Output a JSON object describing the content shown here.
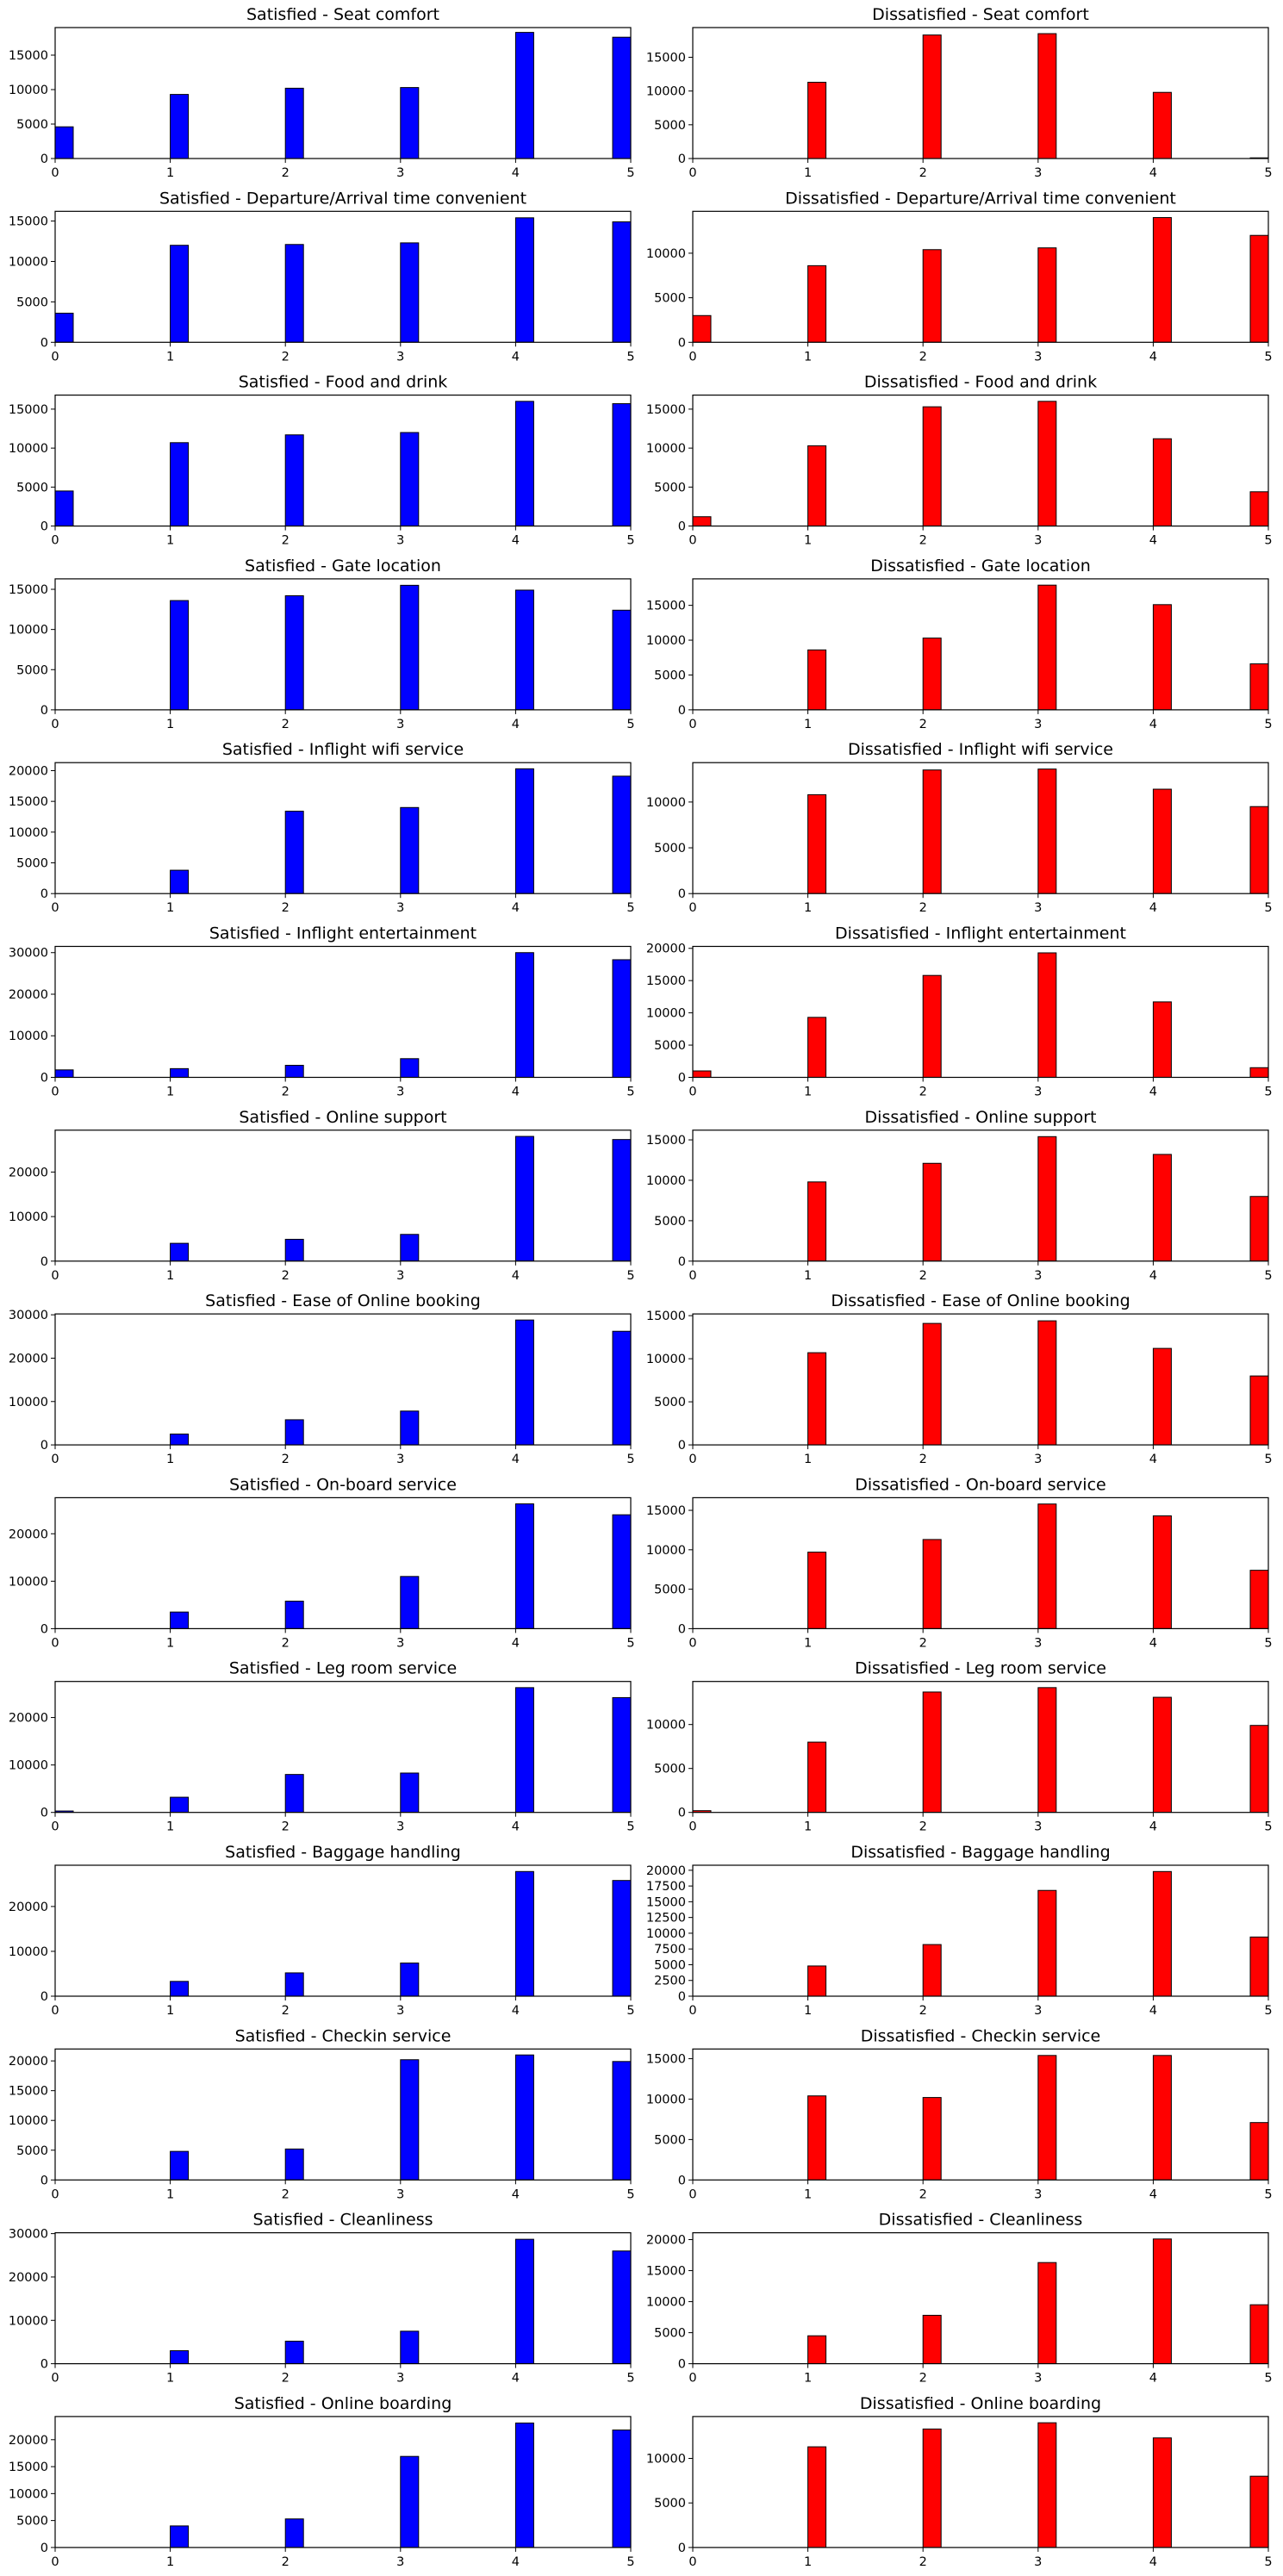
{
  "chart_data": [
    {
      "type": "bar",
      "title": "Satisfied - Seat comfort",
      "color": "#0000ff",
      "x": [
        0,
        1,
        2,
        3,
        4,
        5
      ],
      "values": [
        4600,
        9300,
        10200,
        10300,
        18300,
        17600
      ],
      "xlim": [
        0,
        5
      ],
      "ylim": [
        0,
        19000
      ],
      "yticks": [
        0,
        5000,
        10000,
        15000
      ],
      "xticks": [
        0,
        1,
        2,
        3,
        4,
        5
      ]
    },
    {
      "type": "bar",
      "title": "Dissatisfied - Seat comfort",
      "color": "#ff0000",
      "x": [
        0,
        1,
        2,
        3,
        4,
        5
      ],
      "values": [
        0,
        11300,
        18300,
        18500,
        9800,
        100
      ],
      "xlim": [
        0,
        5
      ],
      "ylim": [
        0,
        19400
      ],
      "yticks": [
        0,
        5000,
        10000,
        15000
      ],
      "xticks": [
        0,
        1,
        2,
        3,
        4,
        5
      ]
    },
    {
      "type": "bar",
      "title": "Satisfied - Departure/Arrival time convenient",
      "color": "#0000ff",
      "x": [
        0,
        1,
        2,
        3,
        4,
        5
      ],
      "values": [
        3600,
        12000,
        12100,
        12300,
        15400,
        14900
      ],
      "xlim": [
        0,
        5
      ],
      "ylim": [
        0,
        16200
      ],
      "yticks": [
        0,
        5000,
        10000,
        15000
      ],
      "xticks": [
        0,
        1,
        2,
        3,
        4,
        5
      ]
    },
    {
      "type": "bar",
      "title": "Dissatisfied - Departure/Arrival time convenient",
      "color": "#ff0000",
      "x": [
        0,
        1,
        2,
        3,
        4,
        5
      ],
      "values": [
        3000,
        8600,
        10400,
        10600,
        14000,
        12000
      ],
      "xlim": [
        0,
        5
      ],
      "ylim": [
        0,
        14700
      ],
      "yticks": [
        0,
        5000,
        10000
      ],
      "xticks": [
        0,
        1,
        2,
        3,
        4,
        5
      ]
    },
    {
      "type": "bar",
      "title": "Satisfied - Food and drink",
      "color": "#0000ff",
      "x": [
        0,
        1,
        2,
        3,
        4,
        5
      ],
      "values": [
        4500,
        10700,
        11700,
        12000,
        16000,
        15700
      ],
      "xlim": [
        0,
        5
      ],
      "ylim": [
        0,
        16800
      ],
      "yticks": [
        0,
        5000,
        10000,
        15000
      ],
      "xticks": [
        0,
        1,
        2,
        3,
        4,
        5
      ]
    },
    {
      "type": "bar",
      "title": "Dissatisfied - Food and drink",
      "color": "#ff0000",
      "x": [
        0,
        1,
        2,
        3,
        4,
        5
      ],
      "values": [
        1200,
        10300,
        15300,
        16000,
        11200,
        4400
      ],
      "xlim": [
        0,
        5
      ],
      "ylim": [
        0,
        16800
      ],
      "yticks": [
        0,
        5000,
        10000,
        15000
      ],
      "xticks": [
        0,
        1,
        2,
        3,
        4,
        5
      ]
    },
    {
      "type": "bar",
      "title": "Satisfied - Gate location",
      "color": "#0000ff",
      "x": [
        0,
        1,
        2,
        3,
        4,
        5
      ],
      "values": [
        0,
        13600,
        14200,
        15500,
        14900,
        12400
      ],
      "xlim": [
        0,
        5
      ],
      "ylim": [
        0,
        16300
      ],
      "yticks": [
        0,
        5000,
        10000,
        15000
      ],
      "xticks": [
        0,
        1,
        2,
        3,
        4,
        5
      ]
    },
    {
      "type": "bar",
      "title": "Dissatisfied - Gate location",
      "color": "#ff0000",
      "x": [
        0,
        1,
        2,
        3,
        4,
        5
      ],
      "values": [
        0,
        8600,
        10300,
        17900,
        15100,
        6600
      ],
      "xlim": [
        0,
        5
      ],
      "ylim": [
        0,
        18800
      ],
      "yticks": [
        0,
        5000,
        10000,
        15000
      ],
      "xticks": [
        0,
        1,
        2,
        3,
        4,
        5
      ]
    },
    {
      "type": "bar",
      "title": "Satisfied - Inflight wifi service",
      "color": "#0000ff",
      "x": [
        0,
        1,
        2,
        3,
        4,
        5
      ],
      "values": [
        0,
        3800,
        13400,
        14000,
        20300,
        19100
      ],
      "xlim": [
        0,
        5
      ],
      "ylim": [
        0,
        21300
      ],
      "yticks": [
        0,
        5000,
        10000,
        15000,
        20000
      ],
      "xticks": [
        0,
        1,
        2,
        3,
        4,
        5
      ]
    },
    {
      "type": "bar",
      "title": "Dissatisfied - Inflight wifi service",
      "color": "#ff0000",
      "x": [
        0,
        1,
        2,
        3,
        4,
        5
      ],
      "values": [
        0,
        10800,
        13500,
        13600,
        11400,
        9500
      ],
      "xlim": [
        0,
        5
      ],
      "ylim": [
        0,
        14300
      ],
      "yticks": [
        0,
        5000,
        10000
      ],
      "xticks": [
        0,
        1,
        2,
        3,
        4,
        5
      ]
    },
    {
      "type": "bar",
      "title": "Satisfied - Inflight entertainment",
      "color": "#0000ff",
      "x": [
        0,
        1,
        2,
        3,
        4,
        5
      ],
      "values": [
        1800,
        2100,
        2900,
        4500,
        30000,
        28300
      ],
      "xlim": [
        0,
        5
      ],
      "ylim": [
        0,
        31500
      ],
      "yticks": [
        0,
        10000,
        20000,
        30000
      ],
      "xticks": [
        0,
        1,
        2,
        3,
        4,
        5
      ]
    },
    {
      "type": "bar",
      "title": "Dissatisfied - Inflight entertainment",
      "color": "#ff0000",
      "x": [
        0,
        1,
        2,
        3,
        4,
        5
      ],
      "values": [
        1000,
        9300,
        15800,
        19300,
        11700,
        1500
      ],
      "xlim": [
        0,
        5
      ],
      "ylim": [
        0,
        20300
      ],
      "yticks": [
        0,
        5000,
        10000,
        15000,
        20000
      ],
      "xticks": [
        0,
        1,
        2,
        3,
        4,
        5
      ]
    },
    {
      "type": "bar",
      "title": "Satisfied - Online support",
      "color": "#0000ff",
      "x": [
        0,
        1,
        2,
        3,
        4,
        5
      ],
      "values": [
        0,
        4000,
        4900,
        6000,
        28000,
        27300
      ],
      "xlim": [
        0,
        5
      ],
      "ylim": [
        0,
        29400
      ],
      "yticks": [
        0,
        10000,
        20000
      ],
      "xticks": [
        0,
        1,
        2,
        3,
        4,
        5
      ]
    },
    {
      "type": "bar",
      "title": "Dissatisfied - Online support",
      "color": "#ff0000",
      "x": [
        0,
        1,
        2,
        3,
        4,
        5
      ],
      "values": [
        0,
        9800,
        12100,
        15400,
        13200,
        8000
      ],
      "xlim": [
        0,
        5
      ],
      "ylim": [
        0,
        16200
      ],
      "yticks": [
        0,
        5000,
        10000,
        15000
      ],
      "xticks": [
        0,
        1,
        2,
        3,
        4,
        5
      ]
    },
    {
      "type": "bar",
      "title": "Satisfied - Ease of Online booking",
      "color": "#0000ff",
      "x": [
        0,
        1,
        2,
        3,
        4,
        5
      ],
      "values": [
        0,
        2500,
        5800,
        7800,
        28800,
        26200
      ],
      "xlim": [
        0,
        5
      ],
      "ylim": [
        0,
        30200
      ],
      "yticks": [
        0,
        10000,
        20000,
        30000
      ],
      "xticks": [
        0,
        1,
        2,
        3,
        4,
        5
      ]
    },
    {
      "type": "bar",
      "title": "Dissatisfied - Ease of Online booking",
      "color": "#ff0000",
      "x": [
        0,
        1,
        2,
        3,
        4,
        5
      ],
      "values": [
        0,
        10700,
        14100,
        14400,
        11200,
        8000
      ],
      "xlim": [
        0,
        5
      ],
      "ylim": [
        0,
        15200
      ],
      "yticks": [
        0,
        5000,
        10000,
        15000
      ],
      "xticks": [
        0,
        1,
        2,
        3,
        4,
        5
      ]
    },
    {
      "type": "bar",
      "title": "Satisfied - On-board service",
      "color": "#0000ff",
      "x": [
        0,
        1,
        2,
        3,
        4,
        5
      ],
      "values": [
        0,
        3500,
        5800,
        11000,
        26300,
        24000
      ],
      "xlim": [
        0,
        5
      ],
      "ylim": [
        0,
        27600
      ],
      "yticks": [
        0,
        10000,
        20000
      ],
      "xticks": [
        0,
        1,
        2,
        3,
        4,
        5
      ]
    },
    {
      "type": "bar",
      "title": "Dissatisfied - On-board service",
      "color": "#ff0000",
      "x": [
        0,
        1,
        2,
        3,
        4,
        5
      ],
      "values": [
        0,
        9700,
        11300,
        15800,
        14300,
        7400
      ],
      "xlim": [
        0,
        5
      ],
      "ylim": [
        0,
        16600
      ],
      "yticks": [
        0,
        5000,
        10000,
        15000
      ],
      "xticks": [
        0,
        1,
        2,
        3,
        4,
        5
      ]
    },
    {
      "type": "bar",
      "title": "Satisfied - Leg room service",
      "color": "#0000ff",
      "x": [
        0,
        1,
        2,
        3,
        4,
        5
      ],
      "values": [
        300,
        3200,
        8000,
        8300,
        26300,
        24200
      ],
      "xlim": [
        0,
        5
      ],
      "ylim": [
        0,
        27600
      ],
      "yticks": [
        0,
        10000,
        20000
      ],
      "xticks": [
        0,
        1,
        2,
        3,
        4,
        5
      ]
    },
    {
      "type": "bar",
      "title": "Dissatisfied - Leg room service",
      "color": "#ff0000",
      "x": [
        0,
        1,
        2,
        3,
        4,
        5
      ],
      "values": [
        200,
        8000,
        13700,
        14200,
        13100,
        9900
      ],
      "xlim": [
        0,
        5
      ],
      "ylim": [
        0,
        14900
      ],
      "yticks": [
        0,
        5000,
        10000
      ],
      "xticks": [
        0,
        1,
        2,
        3,
        4,
        5
      ]
    },
    {
      "type": "bar",
      "title": "Satisfied - Baggage handling",
      "color": "#0000ff",
      "x": [
        0,
        1,
        2,
        3,
        4,
        5
      ],
      "values": [
        0,
        3300,
        5200,
        7400,
        27800,
        25800
      ],
      "xlim": [
        0,
        5
      ],
      "ylim": [
        0,
        29200
      ],
      "yticks": [
        0,
        10000,
        20000
      ],
      "xticks": [
        0,
        1,
        2,
        3,
        4,
        5
      ]
    },
    {
      "type": "bar",
      "title": "Dissatisfied - Baggage handling",
      "color": "#ff0000",
      "x": [
        0,
        1,
        2,
        3,
        4,
        5
      ],
      "values": [
        0,
        4800,
        8200,
        16800,
        19800,
        9400
      ],
      "xlim": [
        0,
        5
      ],
      "ylim": [
        0,
        20800
      ],
      "yticks": [
        0,
        2500,
        5000,
        7500,
        10000,
        12500,
        15000,
        17500,
        20000
      ],
      "xticks": [
        0,
        1,
        2,
        3,
        4,
        5
      ]
    },
    {
      "type": "bar",
      "title": "Satisfied - Checkin service",
      "color": "#0000ff",
      "x": [
        0,
        1,
        2,
        3,
        4,
        5
      ],
      "values": [
        0,
        4800,
        5200,
        20200,
        21000,
        19900
      ],
      "xlim": [
        0,
        5
      ],
      "ylim": [
        0,
        22000
      ],
      "yticks": [
        0,
        5000,
        10000,
        15000,
        20000
      ],
      "xticks": [
        0,
        1,
        2,
        3,
        4,
        5
      ]
    },
    {
      "type": "bar",
      "title": "Dissatisfied - Checkin service",
      "color": "#ff0000",
      "x": [
        0,
        1,
        2,
        3,
        4,
        5
      ],
      "values": [
        0,
        10400,
        10200,
        15400,
        15400,
        7100
      ],
      "xlim": [
        0,
        5
      ],
      "ylim": [
        0,
        16200
      ],
      "yticks": [
        0,
        5000,
        10000,
        15000
      ],
      "xticks": [
        0,
        1,
        2,
        3,
        4,
        5
      ]
    },
    {
      "type": "bar",
      "title": "Satisfied - Cleanliness",
      "color": "#0000ff",
      "x": [
        0,
        1,
        2,
        3,
        4,
        5
      ],
      "values": [
        0,
        3000,
        5200,
        7500,
        28700,
        26000
      ],
      "xlim": [
        0,
        5
      ],
      "ylim": [
        0,
        30200
      ],
      "yticks": [
        0,
        10000,
        20000,
        30000
      ],
      "xticks": [
        0,
        1,
        2,
        3,
        4,
        5
      ]
    },
    {
      "type": "bar",
      "title": "Dissatisfied - Cleanliness",
      "color": "#ff0000",
      "x": [
        0,
        1,
        2,
        3,
        4,
        5
      ],
      "values": [
        0,
        4500,
        7800,
        16300,
        20100,
        9500
      ],
      "xlim": [
        0,
        5
      ],
      "ylim": [
        0,
        21100
      ],
      "yticks": [
        0,
        5000,
        10000,
        15000,
        20000
      ],
      "xticks": [
        0,
        1,
        2,
        3,
        4,
        5
      ]
    },
    {
      "type": "bar",
      "title": "Satisfied - Online boarding",
      "color": "#0000ff",
      "x": [
        0,
        1,
        2,
        3,
        4,
        5
      ],
      "values": [
        0,
        4000,
        5300,
        16900,
        23100,
        21800
      ],
      "xlim": [
        0,
        5
      ],
      "ylim": [
        0,
        24300
      ],
      "yticks": [
        0,
        5000,
        10000,
        15000,
        20000
      ],
      "xticks": [
        0,
        1,
        2,
        3,
        4,
        5
      ]
    },
    {
      "type": "bar",
      "title": "Dissatisfied - Online boarding",
      "color": "#ff0000",
      "x": [
        0,
        1,
        2,
        3,
        4,
        5
      ],
      "values": [
        0,
        11300,
        13300,
        14000,
        12300,
        8000
      ],
      "xlim": [
        0,
        5
      ],
      "ylim": [
        0,
        14700
      ],
      "yticks": [
        0,
        5000,
        10000
      ],
      "xticks": [
        0,
        1,
        2,
        3,
        4,
        5
      ]
    }
  ]
}
